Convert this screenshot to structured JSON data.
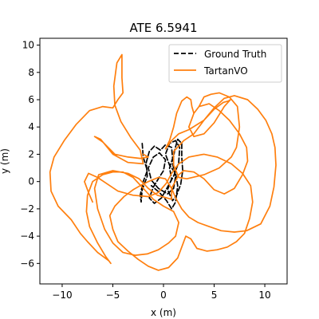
{
  "chart_data": {
    "type": "line",
    "title": "ATE 6.5941",
    "xlabel": "x (m)",
    "ylabel": "y (m)",
    "xlim": [
      -12.2,
      12.2
    ],
    "ylim": [
      -7.5,
      10.5
    ],
    "x_ticks": [
      -10,
      -5,
      0,
      5,
      10
    ],
    "y_ticks": [
      -6,
      -4,
      -2,
      0,
      2,
      4,
      6,
      8,
      10
    ],
    "x_tick_labels": [
      "−10",
      "−5",
      "0",
      "5",
      "10"
    ],
    "y_tick_labels": [
      "−6",
      "−4",
      "−2",
      "0",
      "2",
      "4",
      "6",
      "8",
      "10"
    ],
    "grid": false,
    "legend_position": "top-right",
    "series": [
      {
        "name": "Ground Truth",
        "color": "#000000",
        "style": "dashed",
        "points": [
          [
            -2.1,
            2.8
          ],
          [
            -2.0,
            1.8
          ],
          [
            -1.6,
            0.8
          ],
          [
            -2.0,
            0.0
          ],
          [
            -2.3,
            -1.0
          ],
          [
            -2.2,
            -1.5
          ],
          [
            -2.1,
            -0.6
          ],
          [
            -1.6,
            0.4
          ],
          [
            -1.7,
            1.4
          ],
          [
            -1.4,
            2.2
          ],
          [
            -0.9,
            2.6
          ],
          [
            -0.3,
            2.3
          ],
          [
            0.2,
            2.7
          ],
          [
            0.8,
            2.5
          ],
          [
            0.9,
            1.7
          ],
          [
            0.6,
            1.0
          ],
          [
            0.8,
            0.2
          ],
          [
            0.4,
            -0.6
          ],
          [
            0.9,
            -1.4
          ],
          [
            1.3,
            -1.0
          ],
          [
            1.7,
            -0.2
          ],
          [
            1.9,
            0.8
          ],
          [
            1.8,
            1.8
          ],
          [
            1.8,
            2.8
          ],
          [
            1.4,
            3.1
          ],
          [
            1.1,
            2.3
          ],
          [
            0.9,
            1.3
          ],
          [
            1.2,
            0.4
          ],
          [
            1.0,
            -0.5
          ],
          [
            0.4,
            -0.9
          ],
          [
            -0.5,
            -0.5
          ],
          [
            -1.2,
            0.1
          ],
          [
            -1.5,
            1.0
          ],
          [
            -1.0,
            1.8
          ],
          [
            -0.4,
            2.1
          ],
          [
            0.2,
            1.6
          ],
          [
            0.0,
            0.8
          ],
          [
            -0.5,
            0.2
          ],
          [
            -1.0,
            -0.4
          ],
          [
            -1.4,
            -1.2
          ],
          [
            -0.9,
            -1.6
          ],
          [
            -0.2,
            -1.2
          ],
          [
            0.4,
            -0.4
          ],
          [
            1.0,
            0.4
          ],
          [
            1.5,
            1.4
          ],
          [
            1.6,
            2.5
          ],
          [
            1.2,
            3.0
          ],
          [
            0.6,
            2.8
          ],
          [
            0.2,
            2.0
          ],
          [
            0.6,
            1.2
          ],
          [
            1.2,
            0.6
          ],
          [
            1.4,
            -0.3
          ],
          [
            1.2,
            -1.5
          ],
          [
            0.8,
            -2.0
          ],
          [
            0.3,
            -1.4
          ],
          [
            -0.4,
            -0.8
          ],
          [
            -1.2,
            -0.3
          ]
        ]
      },
      {
        "name": "TartanVO",
        "color": "#ff7f0e",
        "style": "solid",
        "points": [
          [
            -2.0,
            2.0
          ],
          [
            -1.5,
            1.8
          ],
          [
            -2.3,
            1.7
          ],
          [
            -3.5,
            1.8
          ],
          [
            -4.8,
            2.0
          ],
          [
            -6.0,
            2.9
          ],
          [
            -6.8,
            3.3
          ],
          [
            -6.2,
            3.1
          ],
          [
            -5.0,
            2.0
          ],
          [
            -3.5,
            1.4
          ],
          [
            -2.0,
            1.3
          ],
          [
            -2.3,
            2.3
          ],
          [
            -3.2,
            3.2
          ],
          [
            -4.2,
            4.4
          ],
          [
            -4.8,
            5.6
          ],
          [
            -4.9,
            7.0
          ],
          [
            -4.6,
            8.7
          ],
          [
            -4.1,
            9.3
          ],
          [
            -4.1,
            7.6
          ],
          [
            -4.0,
            6.5
          ],
          [
            -4.5,
            6.0
          ],
          [
            -5.0,
            5.4
          ],
          [
            -6.0,
            5.5
          ],
          [
            -7.3,
            5.2
          ],
          [
            -8.6,
            4.2
          ],
          [
            -9.8,
            3.0
          ],
          [
            -10.8,
            1.8
          ],
          [
            -11.2,
            0.7
          ],
          [
            -11.1,
            -0.7
          ],
          [
            -10.4,
            -1.8
          ],
          [
            -9.1,
            -2.8
          ],
          [
            -8.2,
            -3.8
          ],
          [
            -7.5,
            -4.4
          ],
          [
            -6.5,
            -5.2
          ],
          [
            -5.4,
            -5.8
          ],
          [
            -5.2,
            -6.0
          ],
          [
            -5.7,
            -5.5
          ],
          [
            -6.5,
            -4.5
          ],
          [
            -7.3,
            -3.3
          ],
          [
            -7.6,
            -2.2
          ],
          [
            -7.5,
            -1.0
          ],
          [
            -7.0,
            0.0
          ],
          [
            -6.0,
            0.5
          ],
          [
            -5.0,
            0.7
          ],
          [
            -4.0,
            0.7
          ],
          [
            -3.0,
            0.3
          ],
          [
            -2.0,
            -0.5
          ],
          [
            -1.0,
            -1.3
          ],
          [
            0.0,
            -1.8
          ],
          [
            1.0,
            -2.2
          ],
          [
            1.5,
            -3.0
          ],
          [
            1.2,
            -4.0
          ],
          [
            0.5,
            -4.5
          ],
          [
            -0.5,
            -5.0
          ],
          [
            -1.6,
            -5.3
          ],
          [
            -2.8,
            -5.4
          ],
          [
            -4.0,
            -5.2
          ],
          [
            -5.0,
            -4.5
          ],
          [
            -5.8,
            -3.5
          ],
          [
            -6.5,
            -2.0
          ],
          [
            -6.8,
            -0.5
          ],
          [
            -6.4,
            0.5
          ],
          [
            -5.0,
            0.8
          ],
          [
            -3.5,
            0.6
          ],
          [
            -2.4,
            0.2
          ],
          [
            -1.5,
            -0.5
          ],
          [
            -0.6,
            -1.0
          ],
          [
            0.8,
            -1.3
          ],
          [
            0.8,
            -0.5
          ],
          [
            1.5,
            0.5
          ],
          [
            2.0,
            0.8
          ],
          [
            3.0,
            0.7
          ],
          [
            4.0,
            0.2
          ],
          [
            5.0,
            -0.6
          ],
          [
            6.0,
            -0.9
          ],
          [
            7.0,
            -0.5
          ],
          [
            7.8,
            0.5
          ],
          [
            8.3,
            1.5
          ],
          [
            8.2,
            2.5
          ],
          [
            7.5,
            3.5
          ],
          [
            6.5,
            4.5
          ],
          [
            5.5,
            5.2
          ],
          [
            4.5,
            5.7
          ],
          [
            3.5,
            5.5
          ],
          [
            3.0,
            5.0
          ],
          [
            2.5,
            4.0
          ],
          [
            3.0,
            3.3
          ],
          [
            4.0,
            3.5
          ],
          [
            5.0,
            4.3
          ],
          [
            6.0,
            5.5
          ],
          [
            6.6,
            6.0
          ],
          [
            6.4,
            5.9
          ],
          [
            5.9,
            5.8
          ],
          [
            5.0,
            5.3
          ],
          [
            4.0,
            4.5
          ],
          [
            3.0,
            3.5
          ],
          [
            2.0,
            3.0
          ],
          [
            1.0,
            2.2
          ],
          [
            1.0,
            1.2
          ],
          [
            1.5,
            0.3
          ],
          [
            2.3,
            0.2
          ],
          [
            4.0,
            0.5
          ],
          [
            5.5,
            1.0
          ],
          [
            6.7,
            1.8
          ],
          [
            7.2,
            2.5
          ],
          [
            7.5,
            4.0
          ],
          [
            7.3,
            5.5
          ],
          [
            6.5,
            6.2
          ],
          [
            5.5,
            6.5
          ],
          [
            4.7,
            6.4
          ],
          [
            4.0,
            6.2
          ],
          [
            3.5,
            5.5
          ],
          [
            3.0,
            5.0
          ],
          [
            2.8,
            5.5
          ],
          [
            2.7,
            6.0
          ],
          [
            2.3,
            6.2
          ],
          [
            1.8,
            5.9
          ],
          [
            1.3,
            5.0
          ],
          [
            1.0,
            4.0
          ],
          [
            0.6,
            3.0
          ],
          [
            0.2,
            2.4
          ],
          [
            0.8,
            3.0
          ],
          [
            1.5,
            3.5
          ],
          [
            2.5,
            3.8
          ],
          [
            4.0,
            4.5
          ],
          [
            5.0,
            5.4
          ],
          [
            6.0,
            6.1
          ],
          [
            7.0,
            6.3
          ],
          [
            8.3,
            6.0
          ],
          [
            9.3,
            5.3
          ],
          [
            10.1,
            4.5
          ],
          [
            10.7,
            3.5
          ],
          [
            11.0,
            2.5
          ],
          [
            11.1,
            1.2
          ],
          [
            10.9,
            -0.4
          ],
          [
            10.5,
            -1.8
          ],
          [
            9.6,
            -3.1
          ],
          [
            8.2,
            -3.6
          ],
          [
            7.0,
            -3.7
          ],
          [
            5.7,
            -3.6
          ],
          [
            4.5,
            -3.3
          ],
          [
            3.4,
            -3.0
          ],
          [
            2.5,
            -2.6
          ],
          [
            1.8,
            -2.0
          ],
          [
            1.2,
            -1.2
          ],
          [
            0.8,
            -0.5
          ],
          [
            0.2,
            0.2
          ],
          [
            -0.5,
            0.3
          ],
          [
            -1.5,
            0.0
          ],
          [
            -2.3,
            -0.3
          ],
          [
            -3.0,
            -0.6
          ],
          [
            -3.9,
            -1.1
          ],
          [
            -4.8,
            -1.8
          ],
          [
            -5.3,
            -2.5
          ],
          [
            -5.0,
            -3.5
          ],
          [
            -4.5,
            -4.4
          ],
          [
            -3.5,
            -5.1
          ],
          [
            -2.5,
            -5.7
          ],
          [
            -1.5,
            -6.2
          ],
          [
            -0.5,
            -6.5
          ],
          [
            0.5,
            -6.3
          ],
          [
            1.4,
            -5.6
          ],
          [
            1.8,
            -4.8
          ],
          [
            2.2,
            -4.0
          ],
          [
            2.7,
            -4.2
          ],
          [
            3.3,
            -4.9
          ],
          [
            4.3,
            -5.1
          ],
          [
            5.3,
            -5.0
          ],
          [
            6.3,
            -4.8
          ],
          [
            7.2,
            -4.4
          ],
          [
            8.0,
            -3.8
          ],
          [
            8.5,
            -2.7
          ],
          [
            8.8,
            -1.5
          ],
          [
            8.6,
            -0.3
          ],
          [
            7.8,
            0.6
          ],
          [
            6.7,
            1.3
          ],
          [
            5.3,
            1.8
          ],
          [
            4.0,
            2.0
          ],
          [
            2.5,
            1.8
          ],
          [
            1.5,
            1.3
          ],
          [
            0.8,
            0.6
          ],
          [
            0.3,
            -0.1
          ],
          [
            -0.5,
            -0.8
          ],
          [
            -1.5,
            -1.1
          ],
          [
            -3.0,
            -1.0
          ],
          [
            -4.5,
            -0.7
          ],
          [
            -5.5,
            -0.2
          ],
          [
            -6.5,
            0.3
          ],
          [
            -7.4,
            0.6
          ],
          [
            -7.8,
            0.0
          ],
          [
            -7.4,
            -0.8
          ],
          [
            -7.0,
            -1.5
          ]
        ]
      }
    ]
  }
}
